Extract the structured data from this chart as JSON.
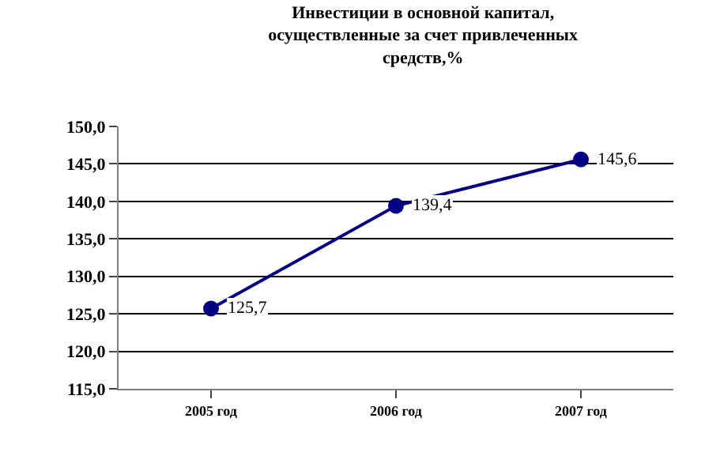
{
  "chart_data": {
    "type": "line",
    "title": "Инвестиции в основной капитал,\nосуществленные за счет привлеченных\nсредств,%",
    "categories": [
      "2005 год",
      "2006 год",
      "2007 год"
    ],
    "series": [
      {
        "color": "#000080",
        "values": [
          125.7,
          139.4,
          145.6
        ],
        "value_labels": [
          "125,7",
          "139,4",
          "145,6"
        ]
      }
    ],
    "ylim": [
      115,
      150
    ],
    "yticks": [
      {
        "value": 115,
        "label": "115,0"
      },
      {
        "value": 120,
        "label": "120,0"
      },
      {
        "value": 125,
        "label": "125,0"
      },
      {
        "value": 130,
        "label": "130,0"
      },
      {
        "value": 135,
        "label": "135,0"
      },
      {
        "value": 140,
        "label": "140,0"
      },
      {
        "value": 145,
        "label": "145,0"
      },
      {
        "value": 150,
        "label": "150,0"
      }
    ],
    "grid": "y",
    "marker": "circle",
    "line_style": "solid",
    "legend": false
  }
}
